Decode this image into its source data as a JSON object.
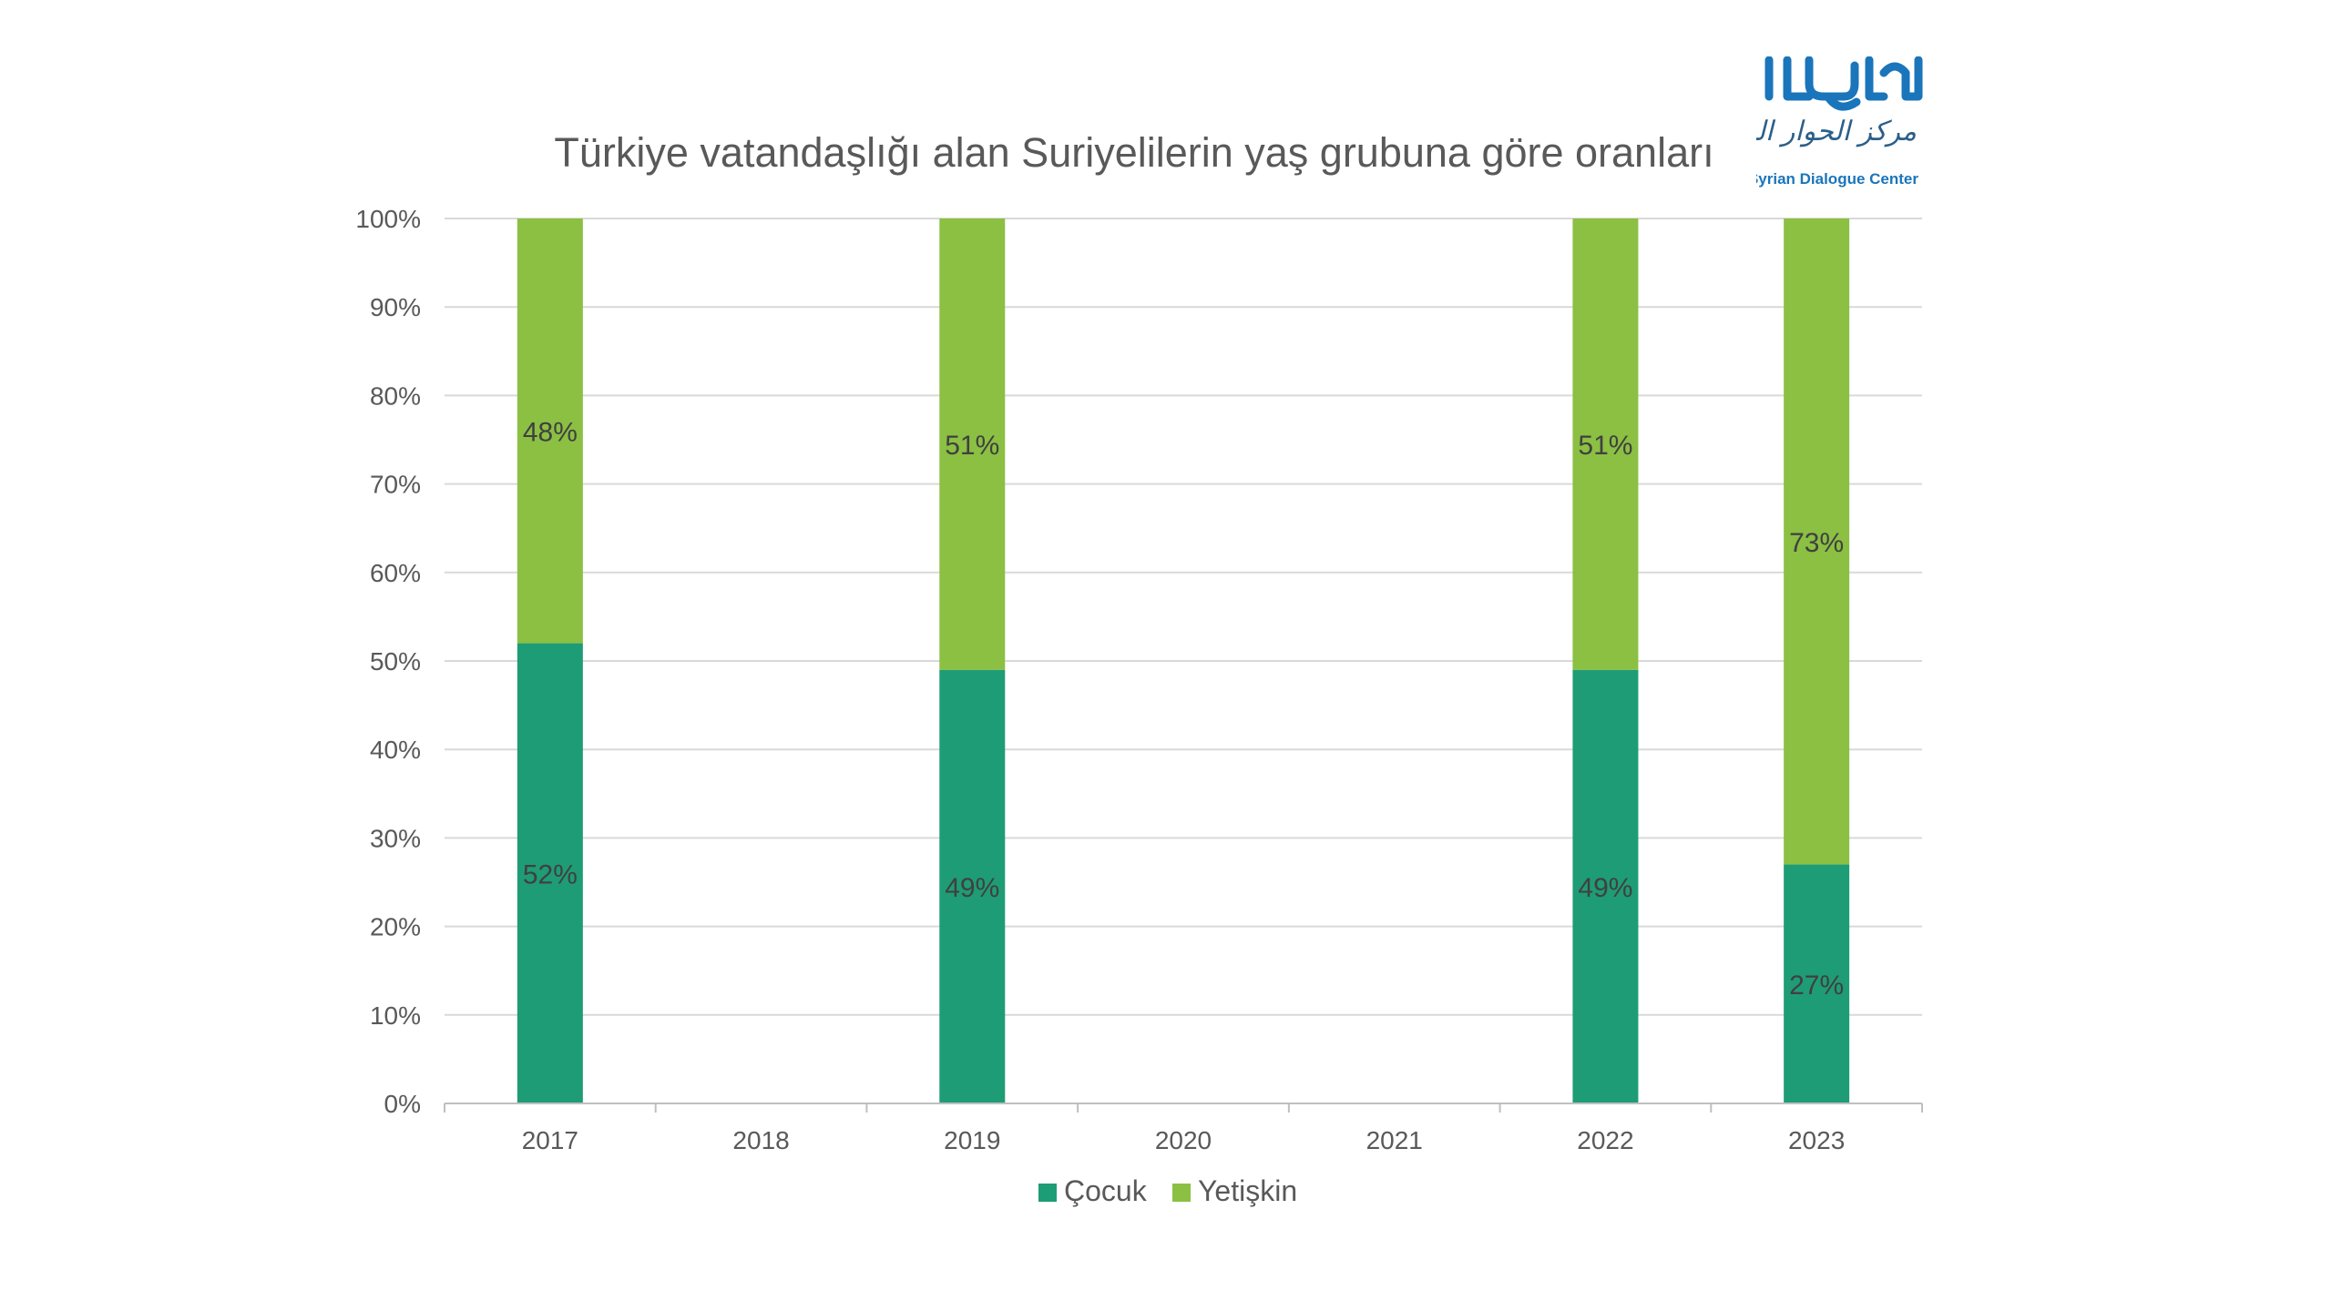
{
  "logo": {
    "brand_ar": "الحوار",
    "name_ar": "مركز الحوار السوري",
    "name_en": "Syrian Dialogue Center"
  },
  "colors": {
    "cocuk": "#1e9c76",
    "yetiskin": "#8bc043",
    "text": "#595959",
    "grid": "#d9d9d9",
    "logo_blue": "#1a75bb",
    "watermark": "#eef1f4"
  },
  "chart_data": {
    "type": "bar",
    "stacked": true,
    "title": "Türkiye vatandaşlığı alan Suriyelilerin yaş grubuna göre oranları",
    "categories": [
      "2017",
      "2018",
      "2019",
      "2020",
      "2021",
      "2022",
      "2023"
    ],
    "series": [
      {
        "name": "Çocuk",
        "values": [
          52,
          null,
          49,
          null,
          null,
          49,
          27
        ],
        "labels": [
          "52%",
          "",
          "49%",
          "",
          "",
          "49%",
          "27%"
        ]
      },
      {
        "name": "Yetişkin",
        "values": [
          48,
          null,
          51,
          null,
          null,
          51,
          73
        ],
        "labels": [
          "48%",
          "",
          "51%",
          "",
          "",
          "51%",
          "73%"
        ]
      }
    ],
    "y_ticks": [
      "0%",
      "10%",
      "20%",
      "30%",
      "40%",
      "50%",
      "60%",
      "70%",
      "80%",
      "90%",
      "100%"
    ],
    "ylim": [
      0,
      100
    ],
    "grid": true,
    "legend": "bottom"
  }
}
